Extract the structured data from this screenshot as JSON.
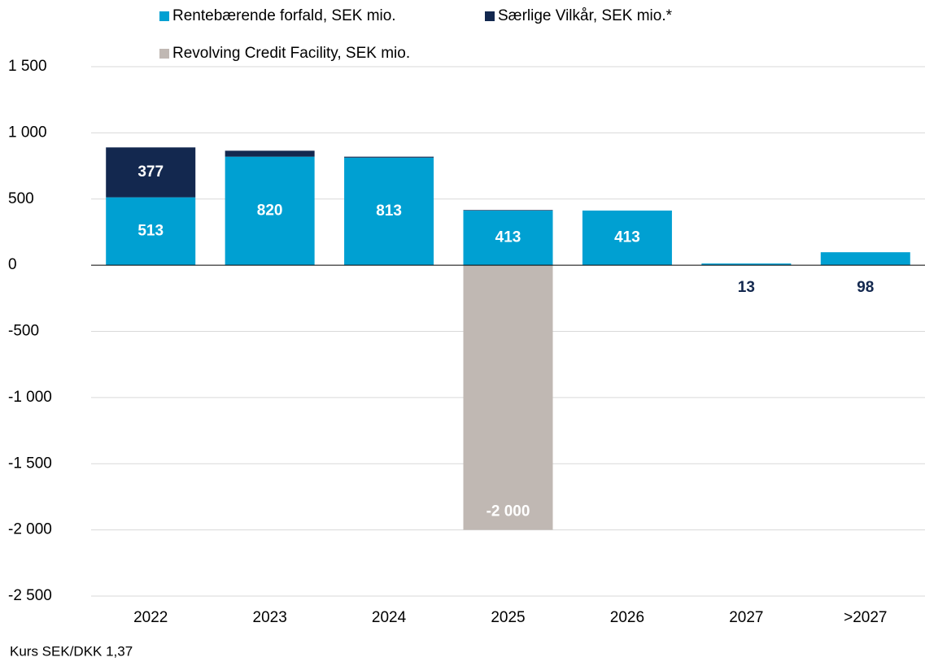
{
  "chart_data": {
    "type": "bar",
    "stacked": true,
    "categories": [
      "2022",
      "2023",
      "2024",
      "2025",
      "2026",
      "2027",
      ">2027"
    ],
    "series": [
      {
        "name": "Rentebærende forfald, SEK mio.",
        "color": "#00a0d2",
        "values": [
          513,
          820,
          813,
          413,
          413,
          13,
          98
        ]
      },
      {
        "name": "Særlige Vilkår, SEK mio.*",
        "color": "#13284f",
        "values": [
          377,
          45,
          7,
          4,
          0,
          0,
          0
        ],
        "value_labels": [
          "377",
          null,
          null,
          null,
          null,
          null,
          null
        ]
      },
      {
        "name": "Revolving Credit Facility, SEK mio.",
        "color": "#c0b8b3",
        "values": [
          0,
          0,
          0,
          -2000,
          0,
          0,
          0
        ],
        "value_labels": [
          null,
          null,
          null,
          "-2 000",
          null,
          null,
          null
        ]
      }
    ],
    "ylim": [
      -2500,
      1500
    ],
    "yticks": [
      {
        "value": -2500,
        "label": "-2 500"
      },
      {
        "value": -2000,
        "label": "-2 000"
      },
      {
        "value": -1500,
        "label": "-1 500"
      },
      {
        "value": -1000,
        "label": "-1 000"
      },
      -500,
      0,
      500,
      {
        "value": 1000,
        "label": "1 000"
      },
      {
        "value": 1500,
        "label": "1 500"
      }
    ],
    "grid": true,
    "legend": "top",
    "footnote": "Kurs SEK/DKK 1,37"
  }
}
